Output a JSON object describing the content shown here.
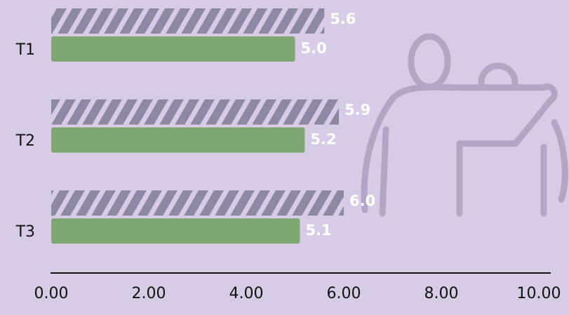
{
  "chart_data": {
    "type": "hbar",
    "categories": [
      "T1",
      "T2",
      "T3"
    ],
    "series": [
      {
        "color": "#8d88a5",
        "hatched": true,
        "values": [
          5.6,
          5.9,
          6.0
        ],
        "value_labels": [
          "5.6",
          "5.9",
          "6.0"
        ]
      },
      {
        "color": "#7fa771",
        "values": [
          5.0,
          5.2,
          5.1
        ],
        "value_labels": [
          "5.0",
          "5.2",
          "5.1"
        ]
      }
    ],
    "xlim": [
      0,
      10
    ],
    "xticks": [
      {
        "value": 0,
        "label": "0.00"
      },
      {
        "value": 2,
        "label": "2.00"
      },
      {
        "value": 4,
        "label": "4.00"
      },
      {
        "value": 6,
        "label": "6.00"
      },
      {
        "value": 8,
        "label": "8.00"
      },
      {
        "value": 10,
        "label": "10.00"
      }
    ]
  }
}
